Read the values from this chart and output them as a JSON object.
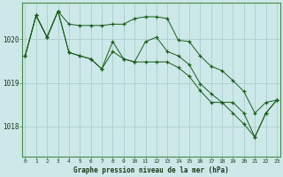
{
  "title": "Graphe pression niveau de la mer (hPa)",
  "bg_color": "#cce8e8",
  "grid_color": "#aacece",
  "line_color": "#1a5c1a",
  "x_ticks": [
    0,
    1,
    2,
    3,
    4,
    5,
    6,
    7,
    8,
    9,
    10,
    11,
    12,
    13,
    14,
    15,
    16,
    17,
    18,
    19,
    20,
    21,
    22,
    23
  ],
  "y_ticks": [
    1018,
    1019,
    1020
  ],
  "ylim": [
    1017.3,
    1020.85
  ],
  "xlim": [
    -0.3,
    23.3
  ],
  "line1": [
    1019.62,
    1020.55,
    1020.05,
    1020.65,
    1020.35,
    1020.32,
    1020.32,
    1020.32,
    1020.35,
    1020.35,
    1020.48,
    1020.52,
    1020.52,
    1020.48,
    1019.98,
    1019.95,
    1019.62,
    1019.38,
    1019.28,
    1019.05,
    1018.8,
    1018.3,
    1018.55,
    1018.6
  ],
  "line2": [
    1019.62,
    1020.55,
    1020.05,
    1020.65,
    1019.7,
    1019.62,
    1019.55,
    1019.32,
    1019.95,
    1019.55,
    1019.48,
    1019.95,
    1020.05,
    1019.72,
    1019.62,
    1019.42,
    1018.98,
    1018.75,
    1018.55,
    1018.55,
    1018.3,
    1017.75,
    1018.3,
    1018.6
  ],
  "line3": [
    1019.62,
    1020.55,
    1020.05,
    1020.65,
    1019.7,
    1019.62,
    1019.55,
    1019.32,
    1019.72,
    1019.55,
    1019.48,
    1019.48,
    1019.48,
    1019.48,
    1019.35,
    1019.15,
    1018.82,
    1018.55,
    1018.55,
    1018.3,
    1018.05,
    1017.75,
    1018.3,
    1018.6
  ]
}
